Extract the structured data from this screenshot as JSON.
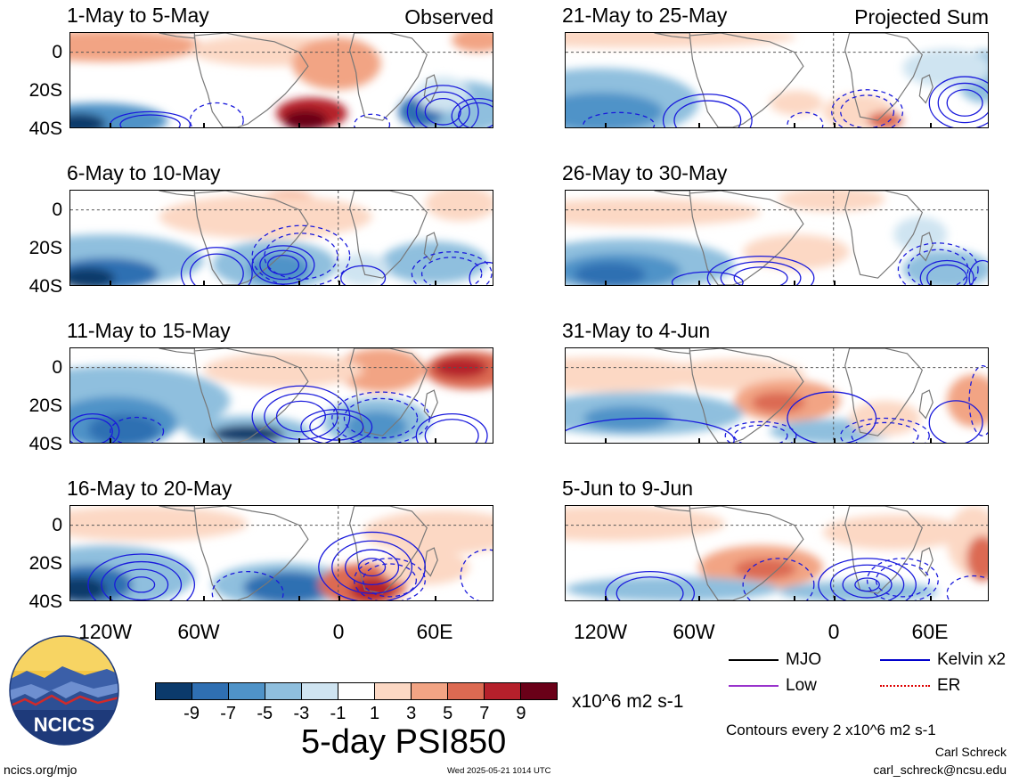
{
  "panels": [
    {
      "title": "1-May to 5-May",
      "tag": "Observed",
      "col": 0,
      "row": 0
    },
    {
      "title": "6-May to 10-May",
      "tag": "",
      "col": 0,
      "row": 1
    },
    {
      "title": "11-May to 15-May",
      "tag": "",
      "col": 0,
      "row": 2
    },
    {
      "title": "16-May to 20-May",
      "tag": "",
      "col": 0,
      "row": 3
    },
    {
      "title": "21-May to 25-May",
      "tag": "Projected Sum",
      "col": 1,
      "row": 0
    },
    {
      "title": "26-May to 30-May",
      "tag": "",
      "col": 1,
      "row": 1
    },
    {
      "title": "31-May to 4-Jun",
      "tag": "",
      "col": 1,
      "row": 2
    },
    {
      "title": "5-Jun to 9-Jun",
      "tag": "",
      "col": 1,
      "row": 3
    }
  ],
  "lat_labels": [
    "0",
    "20S",
    "40S"
  ],
  "lon_labels": [
    "120W",
    "60W",
    "0",
    "60E"
  ],
  "colorbar": {
    "labels": [
      "-9",
      "-7",
      "-5",
      "-3",
      "-1",
      "1",
      "3",
      "5",
      "7",
      "9"
    ],
    "colors": [
      "#0b3a6b",
      "#2f6fb2",
      "#4f93c8",
      "#8fbfde",
      "#cfe4f1",
      "#ffffff",
      "#fcd8c4",
      "#f2a484",
      "#dc6a52",
      "#b5202b",
      "#6a0018"
    ],
    "units": "x10^6 m2 s-1"
  },
  "main_title": "5-day PSI850",
  "legend": [
    {
      "label": "MJO",
      "color": "#000000"
    },
    {
      "label": "Kelvin x2",
      "color": "#0000cc"
    },
    {
      "label": "Low",
      "color": "#9933cc"
    },
    {
      "label": "ER",
      "color": "#dd0000"
    }
  ],
  "contours_note": "Contours every 2 x10^6 m2 s-1",
  "author": "Carl Schreck",
  "email": "carl_schreck@ncsu.edu",
  "site": "ncics.org/mjo",
  "timestamp": "Wed 2025-05-21 1014 UTC",
  "logo_text": "NCICS"
}
